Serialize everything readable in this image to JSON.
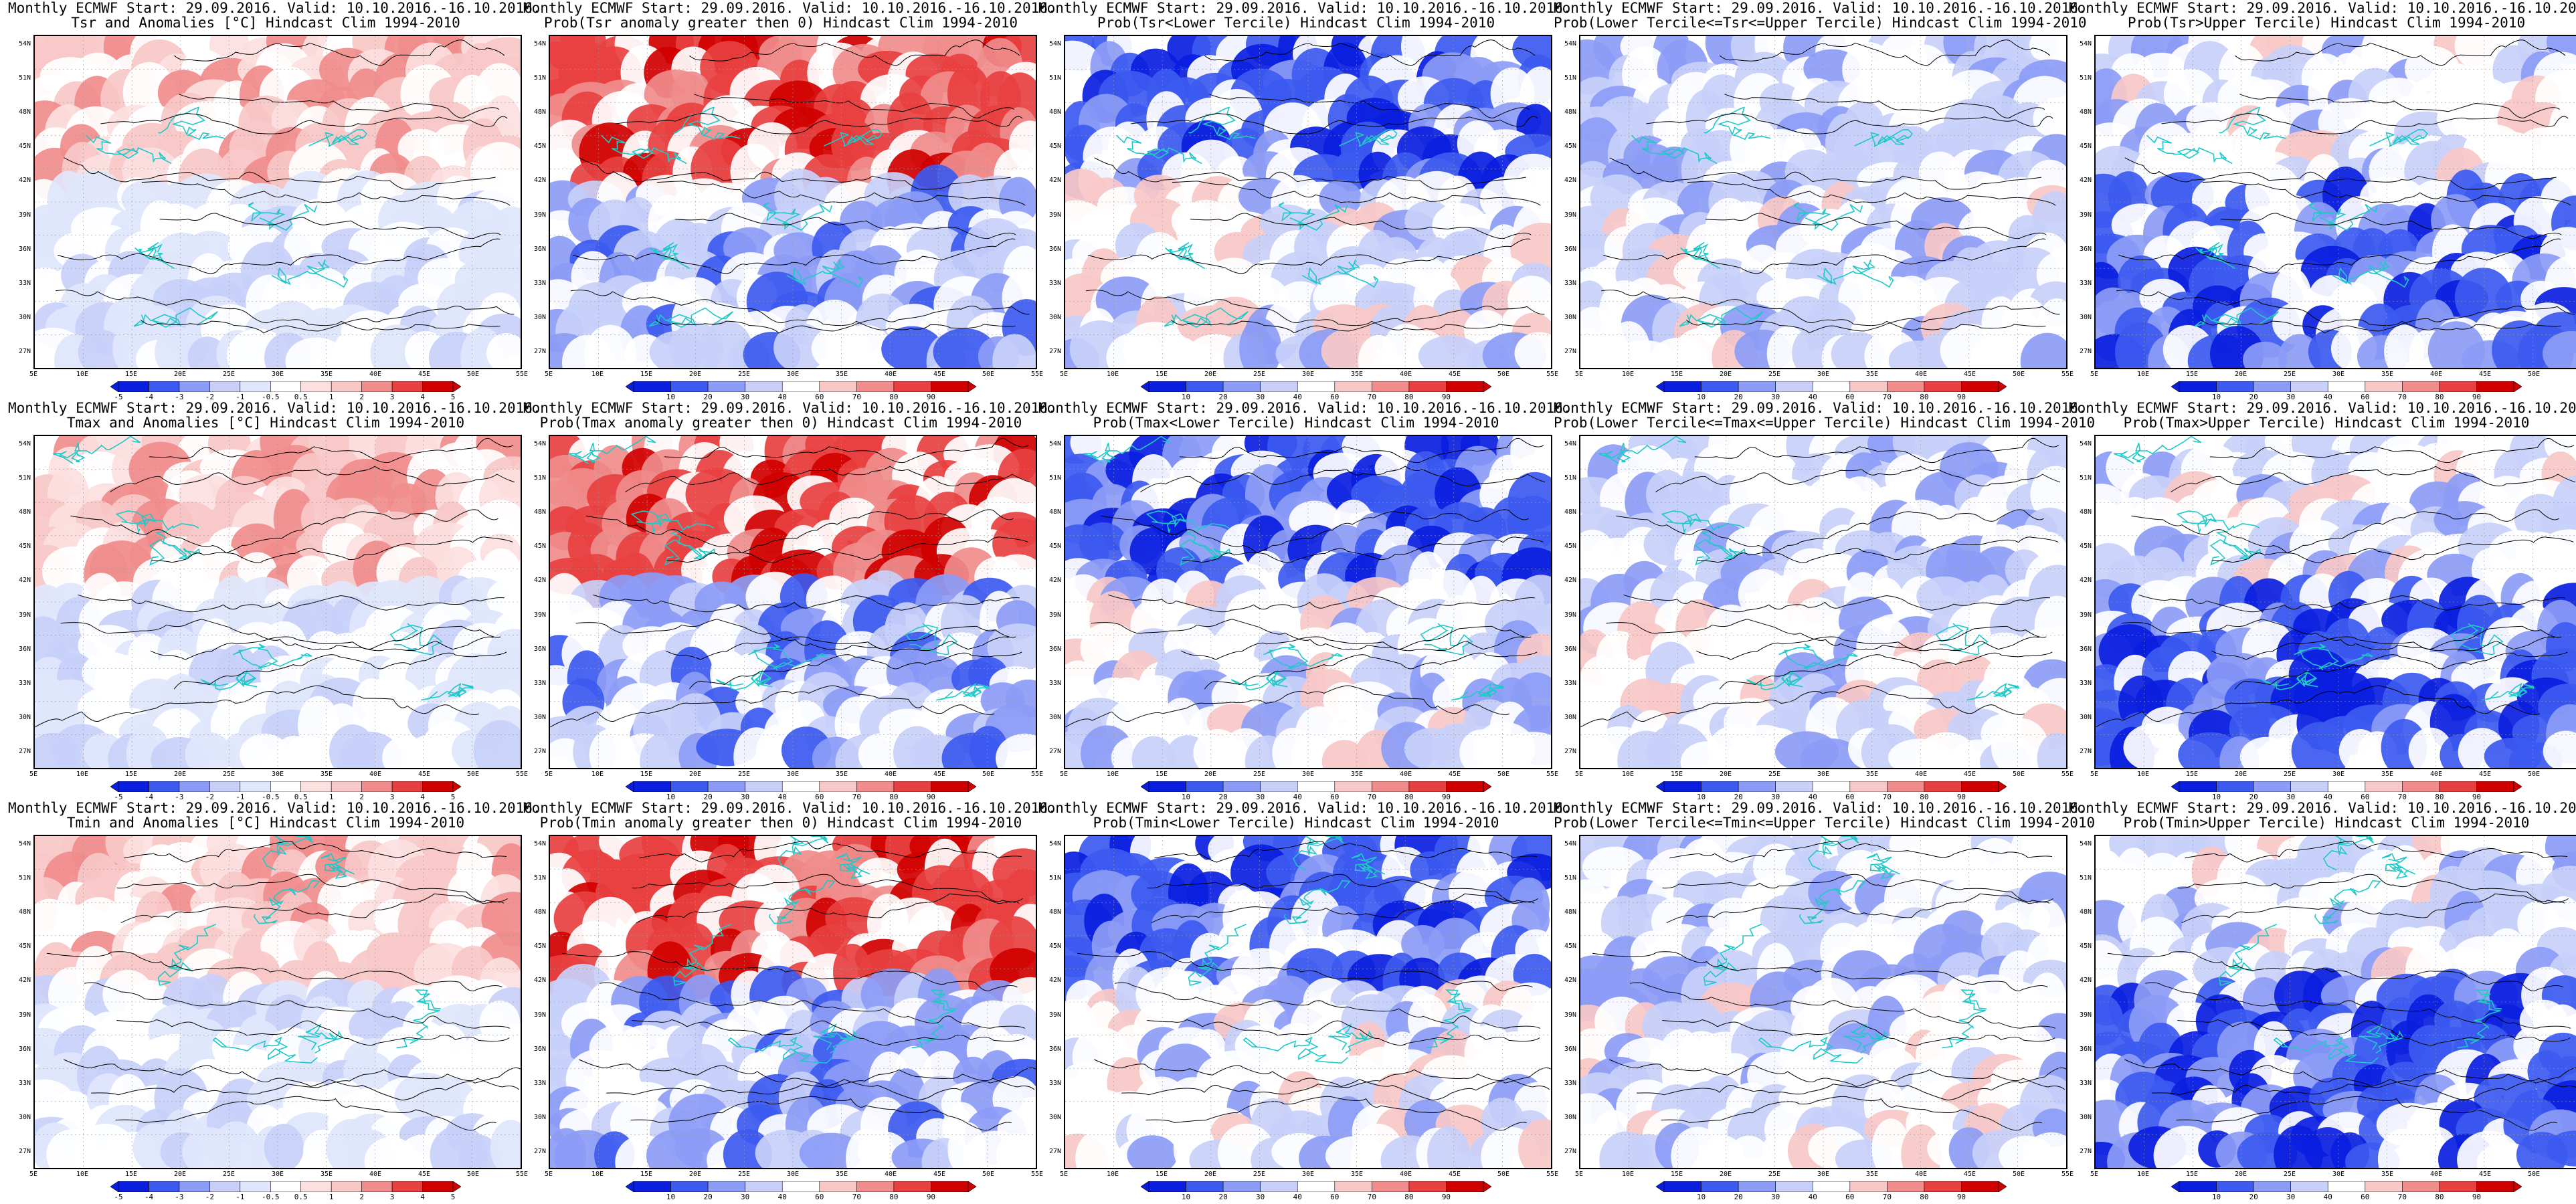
{
  "columns": {
    "heading": "Monthly ECMWF Start: 29.09.2016. Valid: 10.10.2016.-16.10.2016.",
    "lines": {
      "anomaly": [
        "Tsr and Anomalies [°C] Hindcast Clim 1994-2010",
        "Tmax and Anomalies [°C] Hindcast Clim 1994-2010",
        "Tmin and Anomalies [°C] Hindcast Clim 1994-2010"
      ],
      "prob_pos": [
        "Prob(Tsr anomaly greater then 0) Hindcast Clim 1994-2010",
        "Prob(Tmax anomaly greater then 0) Hindcast Clim 1994-2010",
        "Prob(Tmin anomaly greater then 0) Hindcast Clim 1994-2010"
      ],
      "prob_lower": [
        "Prob(Tsr<Lower Tercile) Hindcast Clim 1994-2010",
        "Prob(Tmax<Lower Tercile) Hindcast Clim 1994-2010",
        "Prob(Tmin<Lower Tercile) Hindcast Clim 1994-2010"
      ],
      "prob_middle": [
        "Prob(Lower Tercile<=Tsr<=Upper Tercile) Hindcast Clim 1994-2010",
        "Prob(Lower Tercile<=Tmax<=Upper Tercile) Hindcast Clim 1994-2010",
        "Prob(Lower Tercile<=Tmin<=Upper Tercile) Hindcast Clim 1994-2010"
      ],
      "prob_upper": [
        "Prob(Tsr>Upper Tercile) Hindcast Clim 1994-2010",
        "Prob(Tmax>Upper Tercile) Hindcast Clim 1994-2010",
        "Prob(Tmin>Upper Tercile) Hindcast Clim 1994-2010"
      ]
    }
  },
  "axes": {
    "lat_labels": [
      "54N",
      "51N",
      "48N",
      "45N",
      "42N",
      "39N",
      "36N",
      "33N",
      "30N",
      "27N"
    ],
    "lon_labels": [
      "5E",
      "10E",
      "15E",
      "20E",
      "25E",
      "30E",
      "35E",
      "40E",
      "45E",
      "50E",
      "55E"
    ]
  },
  "colorbars": {
    "anomaly": [
      "-5",
      "-4",
      "-3",
      "-2",
      "-1",
      "-0.5",
      "0.5",
      "1",
      "2",
      "3",
      "4",
      "5"
    ],
    "probability": [
      "10",
      "20",
      "30",
      "40",
      "60",
      "70",
      "80",
      "90"
    ]
  },
  "colors": {
    "blue_dark": "#0a1ee0",
    "blue_mid": "#3c5af0",
    "blue_light": "#8c9cf6",
    "blue_pale": "#c8d0fa",
    "white": "#ffffff",
    "red_pale": "#f8c8c8",
    "red_light": "#f08c8c",
    "red_mid": "#e84040",
    "red_dark": "#d00000",
    "coast": "#20c8c8",
    "contour": "#000000"
  }
}
